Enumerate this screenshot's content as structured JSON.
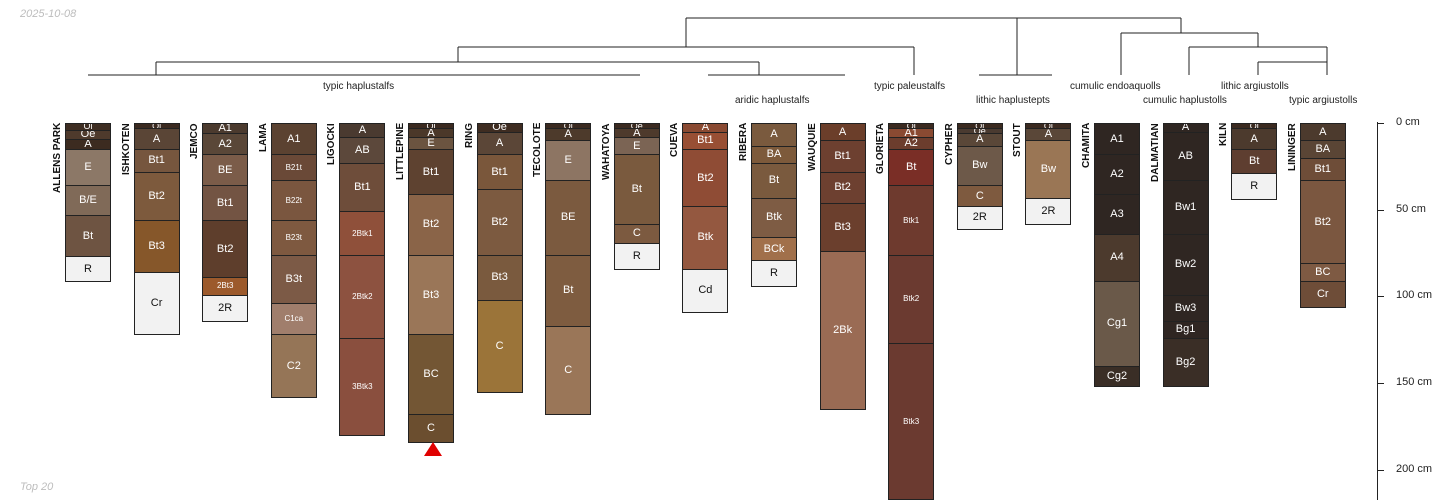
{
  "date_label": "2025-10-08",
  "footer_label": "Top 20",
  "depth_axis": {
    "max_cm": 217,
    "ticks": [
      "0 cm",
      "50 cm",
      "100 cm",
      "150 cm",
      "200 cm"
    ]
  },
  "marker_color": "#e00000",
  "classifications": [
    {
      "label": "typic haplustalfs"
    },
    {
      "label": "aridic haplustalfs"
    },
    {
      "label": "typic paleustalfs"
    },
    {
      "label": "lithic haplustepts"
    },
    {
      "label": "cumulic endoaquolls"
    },
    {
      "label": "cumulic haplustolls"
    },
    {
      "label": "lithic argiustolls"
    },
    {
      "label": "typic argiustolls"
    }
  ],
  "profiles": [
    {
      "name": "ALLENS PARK",
      "horizons": [
        {
          "name": "Oi",
          "top": 0,
          "bottom": 4,
          "color": "#3e2d22"
        },
        {
          "name": "Oe",
          "top": 4,
          "bottom": 9,
          "color": "#4e3a2c"
        },
        {
          "name": "A",
          "top": 9,
          "bottom": 15,
          "color": "#3c2b20"
        },
        {
          "name": "E",
          "top": 15,
          "bottom": 36,
          "color": "#8c7867"
        },
        {
          "name": "B/E",
          "top": 36,
          "bottom": 53,
          "color": "#806a58"
        },
        {
          "name": "Bt",
          "top": 53,
          "bottom": 77,
          "color": "#6e5442"
        },
        {
          "name": "R",
          "top": 77,
          "bottom": 91,
          "color": "#f2f2f2"
        }
      ]
    },
    {
      "name": "ISHKOTEN",
      "horizons": [
        {
          "name": "Oi",
          "top": 0,
          "bottom": 3,
          "color": "#3b2a20"
        },
        {
          "name": "A",
          "top": 3,
          "bottom": 15,
          "color": "#5a4536"
        },
        {
          "name": "Bt1",
          "top": 15,
          "bottom": 28,
          "color": "#76563e"
        },
        {
          "name": "Bt2",
          "top": 28,
          "bottom": 56,
          "color": "#7d5a3d"
        },
        {
          "name": "Bt3",
          "top": 56,
          "bottom": 86,
          "color": "#86572a"
        },
        {
          "name": "Cr",
          "top": 86,
          "bottom": 122,
          "color": "#f2f2f2"
        }
      ]
    },
    {
      "name": "JEMCO",
      "horizons": [
        {
          "name": "A1",
          "top": 0,
          "bottom": 6,
          "color": "#4b3a2e"
        },
        {
          "name": "A2",
          "top": 6,
          "bottom": 18,
          "color": "#5a4738"
        },
        {
          "name": "BE",
          "top": 18,
          "bottom": 36,
          "color": "#7b5c49"
        },
        {
          "name": "Bt1",
          "top": 36,
          "bottom": 56,
          "color": "#735443"
        },
        {
          "name": "Bt2",
          "top": 56,
          "bottom": 89,
          "color": "#5e3e2c"
        },
        {
          "name": "2Bt3",
          "top": 89,
          "bottom": 99,
          "color": "#9c5a2c"
        },
        {
          "name": "2R",
          "top": 99,
          "bottom": 114,
          "color": "#f2f2f2"
        }
      ]
    },
    {
      "name": "LAMA",
      "horizons": [
        {
          "name": "A1",
          "top": 0,
          "bottom": 18,
          "color": "#5b4231"
        },
        {
          "name": "B21t",
          "top": 18,
          "bottom": 33,
          "color": "#6a4937"
        },
        {
          "name": "B22t",
          "top": 33,
          "bottom": 56,
          "color": "#7a563f"
        },
        {
          "name": "B23t",
          "top": 56,
          "bottom": 76,
          "color": "#7e5940"
        },
        {
          "name": "B3t",
          "top": 76,
          "bottom": 104,
          "color": "#7c5a46"
        },
        {
          "name": "C1ca",
          "top": 104,
          "bottom": 122,
          "color": "#a07e6c"
        },
        {
          "name": "C2",
          "top": 122,
          "bottom": 158,
          "color": "#957557"
        }
      ]
    },
    {
      "name": "LIGOCKI",
      "horizons": [
        {
          "name": "A",
          "top": 0,
          "bottom": 8,
          "color": "#4a3a30"
        },
        {
          "name": "AB",
          "top": 8,
          "bottom": 23,
          "color": "#5c483b"
        },
        {
          "name": "Bt1",
          "top": 23,
          "bottom": 51,
          "color": "#6e4d3a"
        },
        {
          "name": "2Btk1",
          "top": 51,
          "bottom": 76,
          "color": "#8f503a"
        },
        {
          "name": "2Btk2",
          "top": 76,
          "bottom": 124,
          "color": "#8d5240"
        },
        {
          "name": "3Btk3",
          "top": 124,
          "bottom": 180,
          "color": "#8a4f3e"
        }
      ]
    },
    {
      "name": "LITTLEPINE",
      "horizons": [
        {
          "name": "Oi",
          "top": 0,
          "bottom": 3,
          "color": "#3b2a20"
        },
        {
          "name": "A",
          "top": 3,
          "bottom": 8,
          "color": "#4b3829"
        },
        {
          "name": "E",
          "top": 8,
          "bottom": 15,
          "color": "#6b5440"
        },
        {
          "name": "Bt1",
          "top": 15,
          "bottom": 41,
          "color": "#5e4230"
        },
        {
          "name": "Bt2",
          "top": 41,
          "bottom": 76,
          "color": "#8a6448"
        },
        {
          "name": "Bt3",
          "top": 76,
          "bottom": 122,
          "color": "#9a7658"
        },
        {
          "name": "BC",
          "top": 122,
          "bottom": 168,
          "color": "#735634"
        },
        {
          "name": "C",
          "top": 168,
          "bottom": 184,
          "color": "#6b4e2f"
        }
      ]
    },
    {
      "name": "RING",
      "horizons": [
        {
          "name": "Oe",
          "top": 0,
          "bottom": 5,
          "color": "#3e2c21"
        },
        {
          "name": "A",
          "top": 5,
          "bottom": 18,
          "color": "#5b4637"
        },
        {
          "name": "Bt1",
          "top": 18,
          "bottom": 38,
          "color": "#7a573b"
        },
        {
          "name": "Bt2",
          "top": 38,
          "bottom": 76,
          "color": "#7c5a40"
        },
        {
          "name": "Bt3",
          "top": 76,
          "bottom": 102,
          "color": "#7a5a3e"
        },
        {
          "name": "C",
          "top": 102,
          "bottom": 155,
          "color": "#9b7439"
        }
      ]
    },
    {
      "name": "TECOLOTE",
      "horizons": [
        {
          "name": "Oi",
          "top": 0,
          "bottom": 3,
          "color": "#3b2a20"
        },
        {
          "name": "A",
          "top": 3,
          "bottom": 10,
          "color": "#4d3a2b"
        },
        {
          "name": "E",
          "top": 10,
          "bottom": 33,
          "color": "#8d7563"
        },
        {
          "name": "BE",
          "top": 33,
          "bottom": 76,
          "color": "#7b5a3f"
        },
        {
          "name": "Bt",
          "top": 76,
          "bottom": 117,
          "color": "#7e5c40"
        },
        {
          "name": "C",
          "top": 117,
          "bottom": 168,
          "color": "#9a7658"
        }
      ]
    },
    {
      "name": "WAHATOYA",
      "horizons": [
        {
          "name": "Oe",
          "top": 0,
          "bottom": 3,
          "color": "#3b2a20"
        },
        {
          "name": "A",
          "top": 3,
          "bottom": 8,
          "color": "#4e3a2c"
        },
        {
          "name": "E",
          "top": 8,
          "bottom": 18,
          "color": "#7b6454"
        },
        {
          "name": "Bt",
          "top": 18,
          "bottom": 58,
          "color": "#7a5a3e"
        },
        {
          "name": "C",
          "top": 58,
          "bottom": 69,
          "color": "#7c5a40"
        },
        {
          "name": "R",
          "top": 69,
          "bottom": 84,
          "color": "#f2f2f2"
        }
      ]
    },
    {
      "name": "CUEVA",
      "horizons": [
        {
          "name": "A",
          "top": 0,
          "bottom": 5,
          "color": "#8a4a32"
        },
        {
          "name": "Bt1",
          "top": 5,
          "bottom": 15,
          "color": "#984f34"
        },
        {
          "name": "Bt2",
          "top": 15,
          "bottom": 48,
          "color": "#8f4c35"
        },
        {
          "name": "Btk",
          "top": 48,
          "bottom": 84,
          "color": "#945840"
        },
        {
          "name": "Cd",
          "top": 84,
          "bottom": 109,
          "color": "#f2f2f2"
        }
      ]
    },
    {
      "name": "RIBERA",
      "horizons": [
        {
          "name": "A",
          "top": 0,
          "bottom": 13,
          "color": "#7a5a3e"
        },
        {
          "name": "BA",
          "top": 13,
          "bottom": 23,
          "color": "#7d5a3b"
        },
        {
          "name": "Bt",
          "top": 23,
          "bottom": 43,
          "color": "#7a5a3e"
        },
        {
          "name": "Btk",
          "top": 43,
          "bottom": 66,
          "color": "#7e5c44"
        },
        {
          "name": "BCk",
          "top": 66,
          "bottom": 79,
          "color": "#a1704b"
        },
        {
          "name": "R",
          "top": 79,
          "bottom": 94,
          "color": "#f2f2f2"
        }
      ]
    },
    {
      "name": "WAUQUIE",
      "horizons": [
        {
          "name": "A",
          "top": 0,
          "bottom": 10,
          "color": "#6b3e2a"
        },
        {
          "name": "Bt1",
          "top": 10,
          "bottom": 28,
          "color": "#6d4030"
        },
        {
          "name": "Bt2",
          "top": 28,
          "bottom": 46,
          "color": "#6d4030"
        },
        {
          "name": "Bt3",
          "top": 46,
          "bottom": 74,
          "color": "#6b3f2d"
        },
        {
          "name": "2Bk",
          "top": 74,
          "bottom": 165,
          "color": "#9a6b54"
        }
      ]
    },
    {
      "name": "GLORIETA",
      "horizons": [
        {
          "name": "Oi",
          "top": 0,
          "bottom": 3,
          "color": "#3b2a20"
        },
        {
          "name": "A1",
          "top": 3,
          "bottom": 8,
          "color": "#8a4a32"
        },
        {
          "name": "A2",
          "top": 8,
          "bottom": 15,
          "color": "#6c3d2d"
        },
        {
          "name": "Bt",
          "top": 15,
          "bottom": 36,
          "color": "#7a2e26"
        },
        {
          "name": "Btk1",
          "top": 36,
          "bottom": 76,
          "color": "#6e3a2e"
        },
        {
          "name": "Btk2",
          "top": 76,
          "bottom": 127,
          "color": "#6b3a30"
        },
        {
          "name": "Btk3",
          "top": 127,
          "bottom": 217,
          "color": "#6b3a30"
        }
      ]
    },
    {
      "name": "CYPHER",
      "horizons": [
        {
          "name": "Oi",
          "top": 0,
          "bottom": 3,
          "color": "#3b2a20"
        },
        {
          "name": "Oe",
          "top": 3,
          "bottom": 6,
          "color": "#4a3a30"
        },
        {
          "name": "A",
          "top": 6,
          "bottom": 13,
          "color": "#5a4738"
        },
        {
          "name": "Bw",
          "top": 13,
          "bottom": 36,
          "color": "#6d5949"
        },
        {
          "name": "C",
          "top": 36,
          "bottom": 48,
          "color": "#7e5a3f"
        },
        {
          "name": "2R",
          "top": 48,
          "bottom": 61,
          "color": "#f2f2f2"
        }
      ]
    },
    {
      "name": "STOUT",
      "horizons": [
        {
          "name": "Oi",
          "top": 0,
          "bottom": 3,
          "color": "#3b2a20"
        },
        {
          "name": "A",
          "top": 3,
          "bottom": 10,
          "color": "#5a4738"
        },
        {
          "name": "Bw",
          "top": 10,
          "bottom": 43,
          "color": "#9a7655"
        },
        {
          "name": "2R",
          "top": 43,
          "bottom": 58,
          "color": "#f2f2f2"
        }
      ]
    },
    {
      "name": "CHAMITA",
      "horizons": [
        {
          "name": "A1",
          "top": 0,
          "bottom": 18,
          "color": "#2f2622"
        },
        {
          "name": "A2",
          "top": 18,
          "bottom": 41,
          "color": "#2f2622"
        },
        {
          "name": "A3",
          "top": 41,
          "bottom": 64,
          "color": "#2f2622"
        },
        {
          "name": "A4",
          "top": 64,
          "bottom": 91,
          "color": "#4c3a2d"
        },
        {
          "name": "Cg1",
          "top": 91,
          "bottom": 140,
          "color": "#6a5949"
        },
        {
          "name": "Cg2",
          "top": 140,
          "bottom": 152,
          "color": "#3a2e26"
        }
      ]
    },
    {
      "name": "DALMATIAN",
      "horizons": [
        {
          "name": "A",
          "top": 0,
          "bottom": 5,
          "color": "#2f2622"
        },
        {
          "name": "AB",
          "top": 5,
          "bottom": 33,
          "color": "#2f2622"
        },
        {
          "name": "Bw1",
          "top": 33,
          "bottom": 64,
          "color": "#2f2622"
        },
        {
          "name": "Bw2",
          "top": 64,
          "bottom": 99,
          "color": "#2f2622"
        },
        {
          "name": "Bw3",
          "top": 99,
          "bottom": 114,
          "color": "#2f2622"
        },
        {
          "name": "Bg1",
          "top": 114,
          "bottom": 124,
          "color": "#2f2622"
        },
        {
          "name": "Bg2",
          "top": 124,
          "bottom": 152,
          "color": "#3a2e26"
        }
      ]
    },
    {
      "name": "KILN",
      "horizons": [
        {
          "name": "Oi",
          "top": 0,
          "bottom": 3,
          "color": "#3b2a20"
        },
        {
          "name": "A",
          "top": 3,
          "bottom": 15,
          "color": "#4c3a2d"
        },
        {
          "name": "Bt",
          "top": 15,
          "bottom": 29,
          "color": "#5e3e30"
        },
        {
          "name": "R",
          "top": 29,
          "bottom": 44,
          "color": "#f2f2f2"
        }
      ]
    },
    {
      "name": "LININGER",
      "horizons": [
        {
          "name": "A",
          "top": 0,
          "bottom": 10,
          "color": "#4c3a2d"
        },
        {
          "name": "BA",
          "top": 10,
          "bottom": 20,
          "color": "#5a4535"
        },
        {
          "name": "Bt1",
          "top": 20,
          "bottom": 33,
          "color": "#6e4d38"
        },
        {
          "name": "Bt2",
          "top": 33,
          "bottom": 81,
          "color": "#7b5740"
        },
        {
          "name": "BC",
          "top": 81,
          "bottom": 91,
          "color": "#7e5a43"
        },
        {
          "name": "Cr",
          "top": 91,
          "bottom": 106,
          "color": "#6e4d38"
        }
      ]
    }
  ]
}
